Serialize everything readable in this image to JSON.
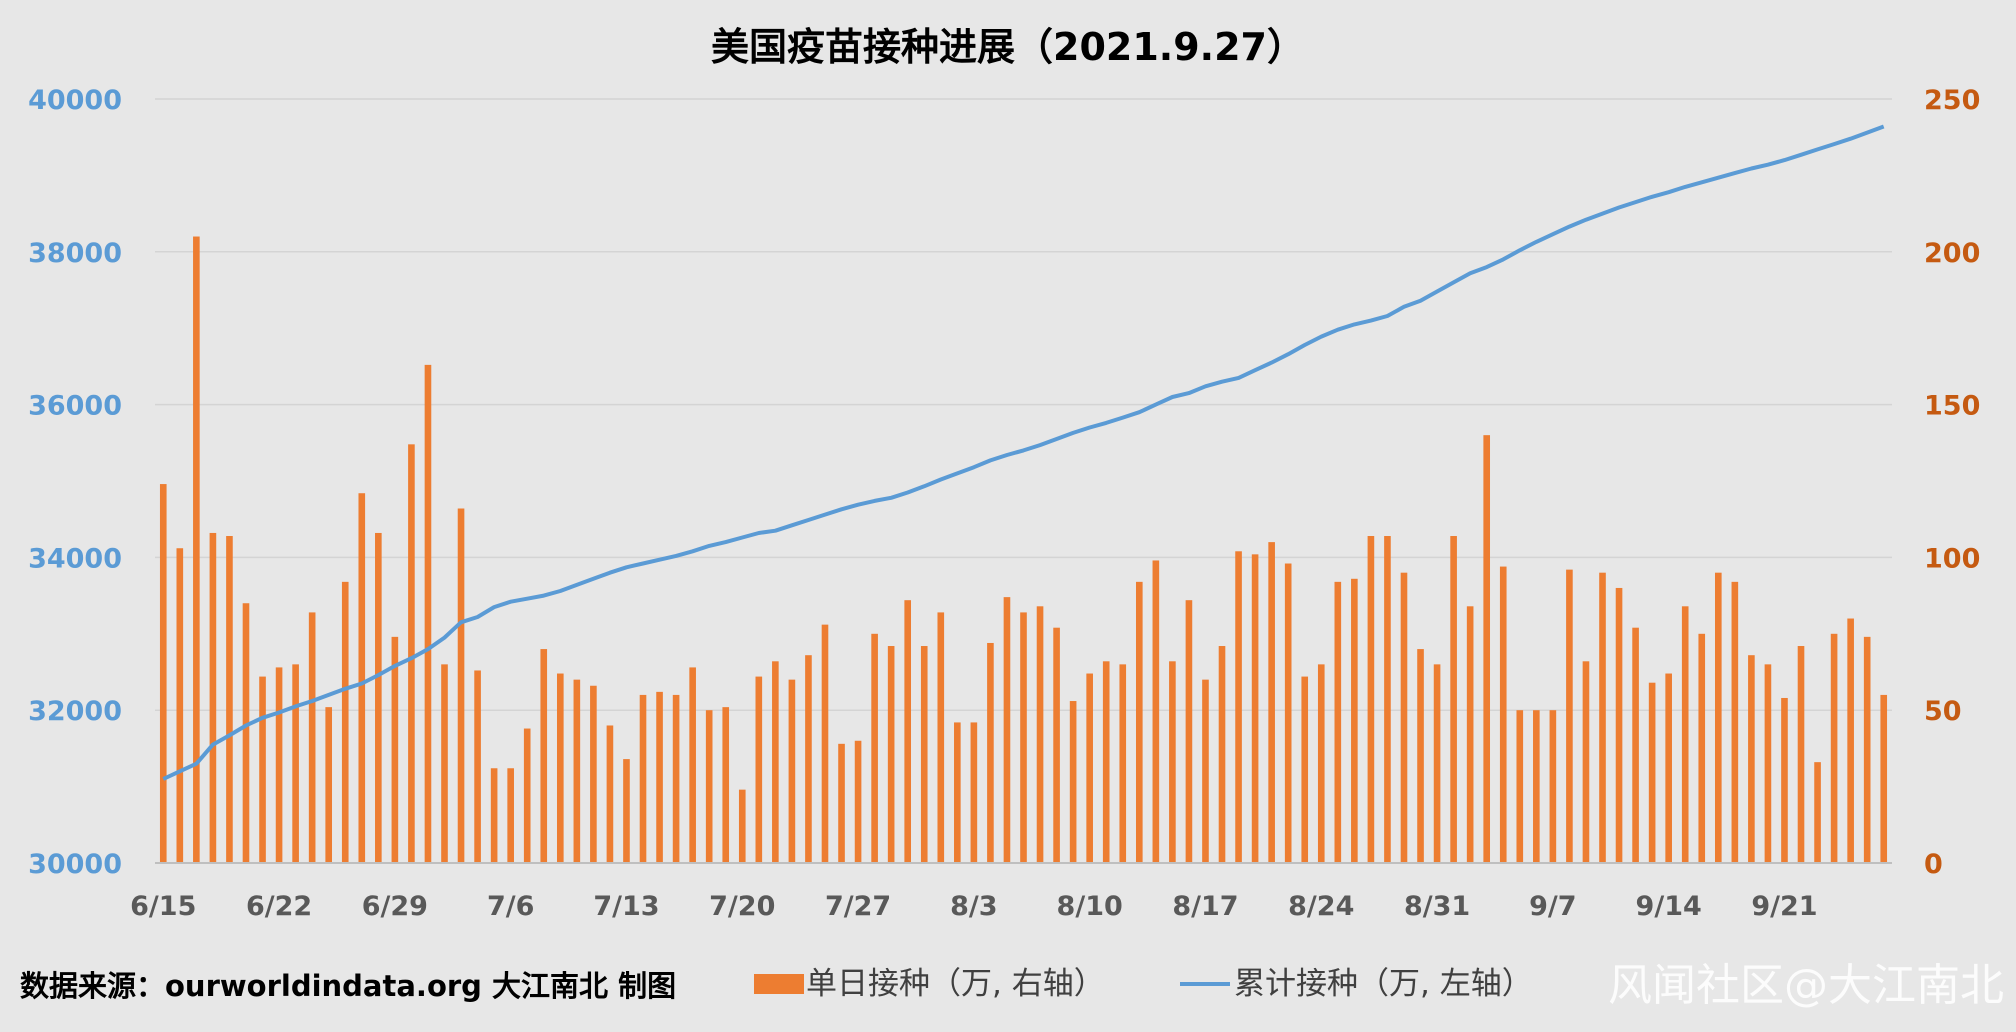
{
  "colors": {
    "bars": "#ed7d31",
    "line": "#5b9bd5",
    "left_axis": "#5b9bd5",
    "right_axis": "#c55a11",
    "grid": "#d4d4d4",
    "background": "#e7e7e7"
  },
  "footer": {
    "source": "数据来源：ourworldindata.org 大江南北 制图",
    "watermark": "风闻社区@大江南北"
  },
  "chart_data": {
    "type": "bar",
    "title": "美国疫苗接种进展（2021.9.27）",
    "x_tick_labels": [
      "6/15",
      "6/22",
      "6/29",
      "7/6",
      "7/13",
      "7/20",
      "7/27",
      "8/3",
      "8/10",
      "8/17",
      "8/24",
      "8/31",
      "9/7",
      "9/14",
      "9/21"
    ],
    "x_tick_every": 7,
    "grid": true,
    "legend_position": "bottom",
    "y_left": {
      "ylim": [
        30000,
        40000
      ],
      "ticks": [
        "30000",
        "32000",
        "34000",
        "36000",
        "38000",
        "40000"
      ]
    },
    "y_right": {
      "ylim": [
        0,
        250
      ],
      "ticks": [
        "0",
        "50",
        "100",
        "150",
        "200",
        "250"
      ]
    },
    "series": [
      {
        "name": "单日接种（万, 右轴）",
        "type": "bar",
        "axis": "right",
        "values": [
          124,
          103,
          205,
          108,
          107,
          85,
          61,
          64,
          65,
          82,
          51,
          92,
          121,
          108,
          74,
          137,
          163,
          65,
          116,
          63,
          31,
          31,
          44,
          70,
          62,
          60,
          58,
          45,
          34,
          55,
          56,
          55,
          64,
          50,
          51,
          24,
          61,
          66,
          60,
          68,
          78,
          39,
          40,
          75,
          71,
          86,
          71,
          82,
          46,
          46,
          72,
          87,
          82,
          84,
          77,
          53,
          62,
          66,
          65,
          92,
          99,
          66,
          86,
          60,
          71,
          102,
          101,
          105,
          98,
          61,
          65,
          92,
          93,
          107,
          107,
          95,
          70,
          65,
          107,
          84,
          140,
          97,
          50,
          50,
          50,
          96,
          66,
          95,
          90,
          77,
          59,
          62,
          84,
          75,
          95,
          92,
          68,
          65,
          54,
          71,
          33,
          75,
          80,
          74,
          55
        ]
      },
      {
        "name": "累计接种（万, 左轴）",
        "type": "line",
        "axis": "left",
        "values": [
          31100,
          31200,
          31300,
          31550,
          31670,
          31800,
          31900,
          31970,
          32050,
          32120,
          32200,
          32280,
          32350,
          32460,
          32580,
          32680,
          32800,
          32950,
          33150,
          33220,
          33350,
          33420,
          33460,
          33500,
          33560,
          33640,
          33720,
          33800,
          33870,
          33920,
          33970,
          34020,
          34080,
          34150,
          34200,
          34260,
          34320,
          34350,
          34420,
          34490,
          34560,
          34630,
          34690,
          34740,
          34780,
          34850,
          34930,
          35020,
          35100,
          35180,
          35270,
          35340,
          35400,
          35470,
          35550,
          35630,
          35700,
          35760,
          35830,
          35900,
          36000,
          36100,
          36150,
          36240,
          36300,
          36350,
          36450,
          36550,
          36660,
          36780,
          36890,
          36980,
          37050,
          37100,
          37160,
          37280,
          37360,
          37480,
          37600,
          37720,
          37800,
          37900,
          38020,
          38130,
          38230,
          38330,
          38420,
          38500,
          38580,
          38650,
          38720,
          38780,
          38850,
          38910,
          38970,
          39030,
          39090,
          39140,
          39200,
          39270,
          39340,
          39410,
          39480,
          39560,
          39640
        ]
      }
    ]
  }
}
